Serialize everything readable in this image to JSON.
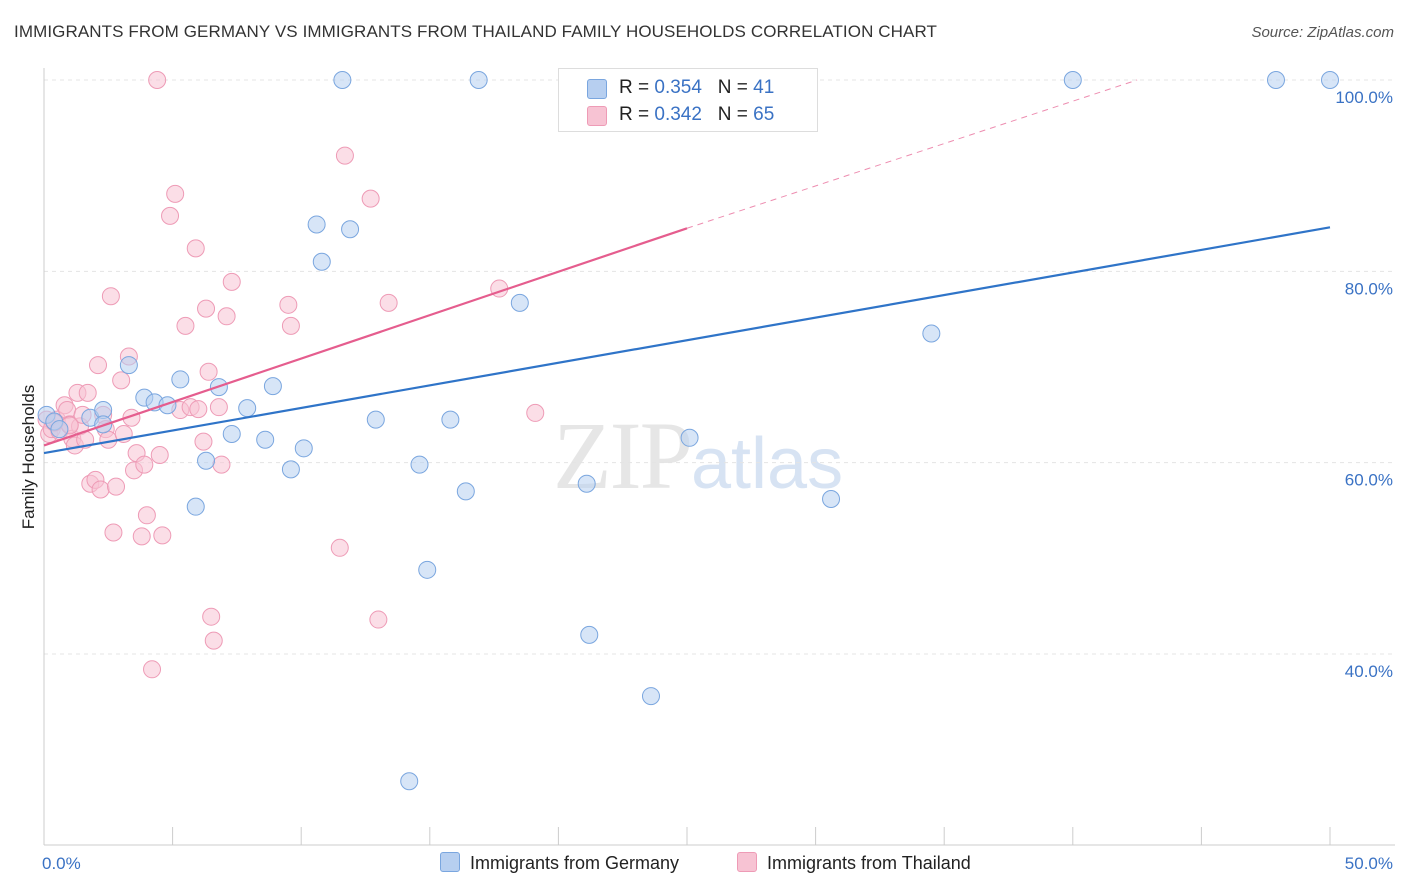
{
  "title": "IMMIGRANTS FROM GERMANY VS IMMIGRANTS FROM THAILAND FAMILY HOUSEHOLDS CORRELATION CHART",
  "source": "Source: ZipAtlas.com",
  "watermark": {
    "zip": "ZIP",
    "atlas": "atlas"
  },
  "legend": {
    "germany": {
      "r_label": "R = ",
      "r_value": "0.354",
      "n_label": "N = ",
      "n_value": "41"
    },
    "thailand": {
      "r_label": "R = ",
      "r_value": "0.342",
      "n_label": "N = ",
      "n_value": "65"
    }
  },
  "colors": {
    "germany_fill": "#b7cff0",
    "germany_stroke": "#7aa6df",
    "germany_line": "#2f74c8",
    "thailand_fill": "#f7c3d3",
    "thailand_stroke": "#ee9bb6",
    "thailand_line": "#e55d8e"
  },
  "chart_data": {
    "type": "scatter",
    "title": "IMMIGRANTS FROM GERMANY VS IMMIGRANTS FROM THAILAND FAMILY HOUSEHOLDS CORRELATION CHART",
    "xlabel": "",
    "ylabel": "Family Households",
    "xlim": [
      0,
      50
    ],
    "ylim": [
      20,
      103
    ],
    "x_tick_labels": [
      "0.0%",
      "50.0%"
    ],
    "y_ticks": [
      40,
      60,
      80,
      100
    ],
    "y_tick_labels": [
      "40.0%",
      "60.0%",
      "80.0%",
      "100.0%"
    ],
    "grid": true,
    "legend_placement": "top-center",
    "series": [
      {
        "name": "Immigrants from Germany",
        "R": 0.354,
        "N": 41,
        "trend": {
          "x0": 0.0,
          "y0": 61.0,
          "x1": 50.0,
          "y1": 84.6,
          "dashed_extension": false
        },
        "points": [
          [
            0.1,
            65
          ],
          [
            0.4,
            64.3
          ],
          [
            0.6,
            63.5
          ],
          [
            1.8,
            64.7
          ],
          [
            2.3,
            65.5
          ],
          [
            2.3,
            64.0
          ],
          [
            3.3,
            70.2
          ],
          [
            3.9,
            66.8
          ],
          [
            4.3,
            66.3
          ],
          [
            4.8,
            66.0
          ],
          [
            5.3,
            68.7
          ],
          [
            5.9,
            55.4
          ],
          [
            6.3,
            60.2
          ],
          [
            6.8,
            67.9
          ],
          [
            7.3,
            63.0
          ],
          [
            7.9,
            65.7
          ],
          [
            8.6,
            62.4
          ],
          [
            8.9,
            68.0
          ],
          [
            9.6,
            59.3
          ],
          [
            10.1,
            61.5
          ],
          [
            10.6,
            84.9
          ],
          [
            10.8,
            81.0
          ],
          [
            11.6,
            100
          ],
          [
            11.9,
            84.4
          ],
          [
            12.9,
            64.5
          ],
          [
            14.2,
            26.7
          ],
          [
            14.6,
            59.8
          ],
          [
            14.9,
            48.8
          ],
          [
            15.8,
            64.5
          ],
          [
            16.4,
            57.0
          ],
          [
            16.9,
            100
          ],
          [
            18.5,
            76.7
          ],
          [
            21.1,
            57.8
          ],
          [
            21.2,
            42.0
          ],
          [
            23.6,
            35.6
          ],
          [
            25.1,
            62.6
          ],
          [
            30.6,
            56.2
          ],
          [
            34.5,
            73.5
          ],
          [
            40.0,
            100
          ],
          [
            47.9,
            100
          ],
          [
            50.0,
            100
          ]
        ]
      },
      {
        "name": "Immigrants from Thailand",
        "R": 0.342,
        "N": 65,
        "trend": {
          "x0": 0.0,
          "y0": 61.8,
          "x1": 25.0,
          "y1": 84.5,
          "dashed_to_x": 42.5,
          "dashed_to_y": 100.0
        },
        "points": [
          [
            0.1,
            64.5
          ],
          [
            0.2,
            63.0
          ],
          [
            0.3,
            63.5
          ],
          [
            0.5,
            64.5
          ],
          [
            0.6,
            63.3
          ],
          [
            0.8,
            66.0
          ],
          [
            0.9,
            65.5
          ],
          [
            1.0,
            64.0
          ],
          [
            1.1,
            62.5
          ],
          [
            1.2,
            61.8
          ],
          [
            1.3,
            67.3
          ],
          [
            1.4,
            63.8
          ],
          [
            1.5,
            65.0
          ],
          [
            1.6,
            62.4
          ],
          [
            1.7,
            67.3
          ],
          [
            1.8,
            57.8
          ],
          [
            2.0,
            58.2
          ],
          [
            2.1,
            70.2
          ],
          [
            2.2,
            57.2
          ],
          [
            2.3,
            65.0
          ],
          [
            2.4,
            63.5
          ],
          [
            2.5,
            62.4
          ],
          [
            2.6,
            77.4
          ],
          [
            2.7,
            52.7
          ],
          [
            2.8,
            57.5
          ],
          [
            3.0,
            68.6
          ],
          [
            3.1,
            63.0
          ],
          [
            3.3,
            71.1
          ],
          [
            3.4,
            64.7
          ],
          [
            3.5,
            59.2
          ],
          [
            3.6,
            61.0
          ],
          [
            3.8,
            52.3
          ],
          [
            3.9,
            59.8
          ],
          [
            4.0,
            54.5
          ],
          [
            4.2,
            38.4
          ],
          [
            4.4,
            100
          ],
          [
            4.5,
            60.8
          ],
          [
            4.6,
            52.4
          ],
          [
            4.9,
            85.8
          ],
          [
            5.1,
            88.1
          ],
          [
            5.3,
            65.5
          ],
          [
            5.5,
            74.3
          ],
          [
            5.7,
            65.8
          ],
          [
            5.9,
            82.4
          ],
          [
            6.2,
            62.2
          ],
          [
            6.3,
            76.1
          ],
          [
            6.4,
            69.5
          ],
          [
            6.5,
            43.9
          ],
          [
            6.6,
            41.4
          ],
          [
            6.8,
            65.8
          ],
          [
            6.9,
            59.8
          ],
          [
            7.1,
            75.3
          ],
          [
            7.3,
            78.9
          ],
          [
            9.5,
            76.5
          ],
          [
            9.6,
            74.3
          ],
          [
            11.5,
            51.1
          ],
          [
            11.7,
            92.1
          ],
          [
            12.7,
            87.6
          ],
          [
            13.0,
            43.6
          ],
          [
            13.4,
            76.7
          ],
          [
            17.7,
            78.2
          ],
          [
            19.1,
            65.2
          ],
          [
            6.0,
            65.6
          ],
          [
            1.0,
            63.9
          ],
          [
            0.4,
            64.2
          ]
        ]
      }
    ]
  },
  "bottom_legend": {
    "germany": "Immigrants from Germany",
    "thailand": "Immigrants from Thailand"
  }
}
